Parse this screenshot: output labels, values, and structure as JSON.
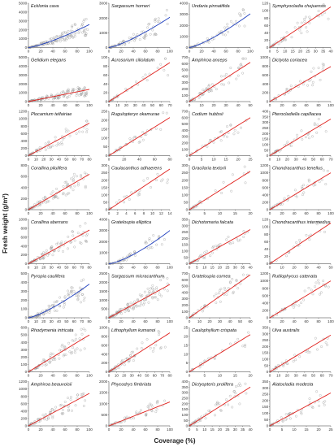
{
  "figure": {
    "xlabel": "Coverage (%)",
    "ylabel": "Fresh weight (g/m²)"
  },
  "colors": {
    "power": "#1f3fbf",
    "linear": "#e0201c",
    "points": "#9a9a9a",
    "axis": "#333333"
  },
  "chart_data": [
    {
      "type": "scatter",
      "title": "Ecklonia cava",
      "xlim": [
        0,
        100
      ],
      "xticks": [
        0,
        20,
        40,
        60,
        80,
        100
      ],
      "ylim": [
        0,
        5000
      ],
      "yticks": [
        0,
        1000,
        2000,
        3000,
        4000,
        5000
      ],
      "fit": {
        "kind": "power",
        "end": 2600,
        "exp": 1.3,
        "color": "#1f3fbf"
      },
      "noise": 0.45,
      "n": 130
    },
    {
      "type": "scatter",
      "title": "Sargassum horneri",
      "xlim": [
        0,
        100
      ],
      "xticks": [
        0,
        20,
        40,
        60,
        80,
        100
      ],
      "ylim": [
        0,
        3000
      ],
      "yticks": [
        0,
        1000,
        2000,
        3000
      ],
      "fit": {
        "kind": "power",
        "end": 2050,
        "exp": 1.3,
        "color": "#1f3fbf"
      },
      "noise": 0.4,
      "n": 70
    },
    {
      "type": "scatter",
      "title": "Undaria pinnatifida",
      "xlim": [
        0,
        100
      ],
      "xticks": [
        0,
        20,
        40,
        60,
        80,
        100
      ],
      "ylim": [
        0,
        4000
      ],
      "yticks": [
        0,
        1000,
        2000,
        3000,
        4000
      ],
      "fit": {
        "kind": "power",
        "end": 3050,
        "exp": 1.3,
        "color": "#1f3fbf"
      },
      "noise": 0.35,
      "n": 55
    },
    {
      "type": "scatter",
      "title": "Symphyocladia chejuensis",
      "xlim": [
        0,
        40
      ],
      "xticks": [
        0,
        5,
        10,
        15,
        20,
        25,
        30,
        35,
        40
      ],
      "ylim": [
        0,
        120
      ],
      "yticks": [
        0,
        20,
        40,
        60,
        80,
        100,
        120
      ],
      "fit": {
        "kind": "linear",
        "end": 110,
        "color": "#e0201c"
      },
      "noise": 0.35,
      "n": 45
    },
    {
      "type": "scatter",
      "title": "Gelidium elegans",
      "xlim": [
        0,
        100
      ],
      "xticks": [
        0,
        20,
        40,
        60,
        80,
        100
      ],
      "ylim": [
        0,
        5000
      ],
      "yticks": [
        0,
        1000,
        2000,
        3000,
        4000,
        5000
      ],
      "fit": {
        "kind": "linear",
        "end": 1380,
        "color": "#e0201c"
      },
      "noise": 0.5,
      "n": 120
    },
    {
      "type": "scatter",
      "title": "Acrosorium ciliolatum",
      "xlim": [
        0,
        70
      ],
      "xticks": [
        0,
        10,
        20,
        30,
        40,
        50,
        60,
        70
      ],
      "ylim": [
        0,
        100
      ],
      "yticks": [
        0,
        20,
        40,
        60,
        80,
        100
      ],
      "fit": {
        "kind": "linear",
        "end": 88,
        "color": "#e0201c"
      },
      "noise": 0.3,
      "n": 30
    },
    {
      "type": "scatter",
      "title": "Amphiroa anceps",
      "xlim": [
        0,
        50
      ],
      "xticks": [
        0,
        10,
        20,
        30,
        40,
        50
      ],
      "ylim": [
        0,
        700
      ],
      "yticks": [
        0,
        100,
        200,
        300,
        400,
        500,
        600,
        700
      ],
      "fit": {
        "kind": "linear",
        "end": 620,
        "color": "#e0201c"
      },
      "noise": 0.35,
      "n": 60
    },
    {
      "type": "scatter",
      "title": "Dictyota coriacea",
      "xlim": [
        0,
        100
      ],
      "xticks": [
        0,
        20,
        40,
        60,
        80,
        100
      ],
      "ylim": [
        0,
        1000
      ],
      "yticks": [
        0,
        200,
        400,
        600,
        800,
        1000
      ],
      "fit": {
        "kind": "linear",
        "end": 790,
        "color": "#e0201c"
      },
      "noise": 0.35,
      "n": 35
    },
    {
      "type": "scatter",
      "title": "Plocamium telfairiae",
      "xlim": [
        0,
        80
      ],
      "xticks": [
        0,
        10,
        20,
        30,
        40,
        50,
        60,
        70,
        80
      ],
      "ylim": [
        0,
        1200
      ],
      "yticks": [
        0,
        200,
        400,
        600,
        800,
        1000,
        1200
      ],
      "fit": {
        "kind": "linear",
        "end": 880,
        "color": "#e0201c"
      },
      "noise": 0.35,
      "n": 55
    },
    {
      "type": "scatter",
      "title": "Rugulopteryx okamurae",
      "xlim": [
        0,
        80
      ],
      "xticks": [
        0,
        20,
        40,
        60,
        80
      ],
      "ylim": [
        0,
        250
      ],
      "yticks": [
        0,
        50,
        100,
        150,
        200,
        250
      ],
      "fit": {
        "kind": "linear",
        "end": 215,
        "color": "#e0201c"
      },
      "noise": 0.3,
      "n": 35
    },
    {
      "type": "scatter",
      "title": "Codium hubbsii",
      "xlim": [
        0,
        25
      ],
      "xticks": [
        0,
        5,
        10,
        15,
        20,
        25
      ],
      "ylim": [
        0,
        700
      ],
      "yticks": [
        0,
        100,
        200,
        300,
        400,
        500,
        600,
        700
      ],
      "fit": {
        "kind": "linear",
        "end": 600,
        "color": "#e0201c"
      },
      "noise": 0.3,
      "n": 30
    },
    {
      "type": "scatter",
      "title": "Pterocladiella capillacea",
      "xlim": [
        0,
        70
      ],
      "xticks": [
        0,
        10,
        20,
        30,
        40,
        50,
        60,
        70
      ],
      "ylim": [
        0,
        400
      ],
      "yticks": [
        0,
        50,
        100,
        150,
        200,
        250,
        300,
        350,
        400
      ],
      "fit": {
        "kind": "linear",
        "end": 330,
        "color": "#e0201c"
      },
      "noise": 0.3,
      "n": 40
    },
    {
      "type": "scatter",
      "title": "Corallina pilulifera",
      "xlim": [
        0,
        100
      ],
      "xticks": [
        0,
        20,
        40,
        60,
        80,
        100
      ],
      "ylim": [
        0,
        800
      ],
      "yticks": [
        0,
        200,
        400,
        600,
        800
      ],
      "fit": {
        "kind": "linear",
        "end": 640,
        "color": "#e0201c"
      },
      "noise": 0.35,
      "n": 80
    },
    {
      "type": "scatter",
      "title": "Caulacanthus adhaerens",
      "xlim": [
        0,
        14
      ],
      "xticks": [
        0,
        2,
        4,
        6,
        8,
        10,
        12,
        14
      ],
      "ylim": [
        0,
        300
      ],
      "yticks": [
        0,
        50,
        100,
        150,
        200,
        250,
        300
      ],
      "fit": {
        "kind": "linear",
        "end": 275,
        "color": "#e0201c"
      },
      "noise": 0.3,
      "n": 25
    },
    {
      "type": "scatter",
      "title": "Gracilaria textorii",
      "xlim": [
        0,
        20
      ],
      "xticks": [
        0,
        5,
        10,
        15,
        20
      ],
      "ylim": [
        0,
        300
      ],
      "yticks": [
        0,
        50,
        100,
        150,
        200,
        250,
        300
      ],
      "fit": {
        "kind": "linear",
        "end": 260,
        "color": "#e0201c"
      },
      "noise": 0.3,
      "n": 25
    },
    {
      "type": "scatter",
      "title": "Chondracanthus tenellus",
      "xlim": [
        0,
        100
      ],
      "xticks": [
        0,
        20,
        40,
        60,
        80,
        100
      ],
      "ylim": [
        0,
        1200
      ],
      "yticks": [
        0,
        200,
        400,
        600,
        800,
        1000,
        1200
      ],
      "fit": {
        "kind": "linear",
        "end": 1000,
        "color": "#e0201c"
      },
      "noise": 0.3,
      "n": 40
    },
    {
      "type": "scatter",
      "title": "Corallina aberrans",
      "xlim": [
        0,
        80
      ],
      "xticks": [
        0,
        10,
        20,
        30,
        40,
        50,
        60,
        70,
        80
      ],
      "ylim": [
        0,
        1000
      ],
      "yticks": [
        0,
        200,
        400,
        600,
        800,
        1000
      ],
      "fit": {
        "kind": "linear",
        "end": 760,
        "color": "#e0201c"
      },
      "noise": 0.35,
      "n": 80
    },
    {
      "type": "scatter",
      "title": "Grateloupia elliptica",
      "xlim": [
        0,
        100
      ],
      "xticks": [
        0,
        20,
        40,
        60,
        80,
        100
      ],
      "ylim": [
        0,
        4000
      ],
      "yticks": [
        0,
        1000,
        2000,
        3000,
        4000
      ],
      "fit": {
        "kind": "power",
        "end": 3000,
        "exp": 1.4,
        "color": "#1f3fbf"
      },
      "noise": 0.35,
      "n": 50
    },
    {
      "type": "scatter",
      "title": "Dichotomaria falcata",
      "xlim": [
        0,
        40
      ],
      "xticks": [
        0,
        5,
        10,
        15,
        20,
        25,
        30,
        35,
        40
      ],
      "ylim": [
        0,
        350
      ],
      "yticks": [
        0,
        50,
        100,
        150,
        200,
        250,
        300,
        350
      ],
      "fit": {
        "kind": "linear",
        "end": 270,
        "color": "#e0201c"
      },
      "noise": 0.3,
      "n": 45
    },
    {
      "type": "scatter",
      "title": "Chondracanthus intermedius",
      "xlim": [
        0,
        50
      ],
      "xticks": [
        0,
        10,
        20,
        30,
        40,
        50
      ],
      "ylim": [
        0,
        120
      ],
      "yticks": [
        0,
        20,
        40,
        60,
        80,
        100,
        120
      ],
      "fit": {
        "kind": "linear",
        "end": 110,
        "color": "#e0201c"
      },
      "noise": 0.3,
      "n": 25
    },
    {
      "type": "scatter",
      "title": "Pyropia caulifera",
      "xlim": [
        0,
        80
      ],
      "xticks": [
        0,
        10,
        20,
        30,
        40,
        50,
        60,
        70,
        80
      ],
      "ylim": [
        0,
        500
      ],
      "yticks": [
        0,
        100,
        200,
        300,
        400,
        500
      ],
      "fit": {
        "kind": "power",
        "end": 380,
        "exp": 1.3,
        "color": "#1f3fbf"
      },
      "noise": 0.45,
      "n": 100
    },
    {
      "type": "scatter",
      "title": "Sargassum micracanthum",
      "xlim": [
        0,
        100
      ],
      "xticks": [
        0,
        20,
        40,
        60,
        80,
        100
      ],
      "ylim": [
        0,
        2500
      ],
      "yticks": [
        0,
        500,
        1000,
        1500,
        2000,
        2500
      ],
      "fit": {
        "kind": "linear",
        "end": 1880,
        "color": "#e0201c"
      },
      "noise": 0.35,
      "n": 110
    },
    {
      "type": "scatter",
      "title": "Grateloupia cornea",
      "xlim": [
        0,
        60
      ],
      "xticks": [
        0,
        10,
        20,
        30,
        40,
        50,
        60
      ],
      "ylim": [
        0,
        700
      ],
      "yticks": [
        0,
        100,
        200,
        300,
        400,
        500,
        600,
        700
      ],
      "fit": {
        "kind": "linear",
        "end": 680,
        "color": "#e0201c"
      },
      "noise": 0.3,
      "n": 45
    },
    {
      "type": "scatter",
      "title": "Rutilophycus catenata",
      "xlim": [
        0,
        100
      ],
      "xticks": [
        0,
        20,
        40,
        60,
        80,
        100
      ],
      "ylim": [
        0,
        1200
      ],
      "yticks": [
        0,
        200,
        400,
        600,
        800,
        1000,
        1200
      ],
      "fit": {
        "kind": "linear",
        "end": 1000,
        "color": "#e0201c"
      },
      "noise": 0.3,
      "n": 35
    },
    {
      "type": "scatter",
      "title": "Rhodymenia intricata",
      "xlim": [
        0,
        100
      ],
      "xticks": [
        0,
        20,
        40,
        60,
        80,
        100
      ],
      "ylim": [
        0,
        600
      ],
      "yticks": [
        0,
        100,
        200,
        300,
        400,
        500,
        600
      ],
      "fit": {
        "kind": "linear",
        "end": 500,
        "color": "#e0201c"
      },
      "noise": 0.35,
      "n": 70
    },
    {
      "type": "scatter",
      "title": "Lithophyllum kumanoi",
      "xlim": [
        0,
        80
      ],
      "xticks": [
        0,
        10,
        20,
        30,
        40,
        50,
        60,
        70,
        80
      ],
      "ylim": [
        0,
        1000
      ],
      "yticks": [
        0,
        200,
        400,
        600,
        800,
        1000
      ],
      "fit": {
        "kind": "linear",
        "end": 880,
        "color": "#e0201c"
      },
      "noise": 0.35,
      "n": 60
    },
    {
      "type": "scatter",
      "title": "Caulophyllum crispata",
      "xlim": [
        0,
        20
      ],
      "xticks": [
        0,
        5,
        10,
        15,
        20
      ],
      "ylim": [
        0,
        25
      ],
      "yticks": [
        0,
        5,
        10,
        15,
        20,
        25
      ],
      "fit": {
        "kind": "linear",
        "end": 21,
        "color": "#e0201c"
      },
      "noise": 0.3,
      "n": 25
    },
    {
      "type": "scatter",
      "title": "Ulva australis",
      "xlim": [
        0,
        70
      ],
      "xticks": [
        0,
        10,
        20,
        30,
        40,
        50,
        60,
        70
      ],
      "ylim": [
        0,
        350
      ],
      "yticks": [
        0,
        50,
        100,
        150,
        200,
        250,
        300,
        350
      ],
      "fit": {
        "kind": "linear",
        "end": 290,
        "color": "#e0201c"
      },
      "noise": 0.3,
      "n": 35
    },
    {
      "type": "scatter",
      "title": "Amphiroa beauvoisii",
      "xlim": [
        0,
        100
      ],
      "xticks": [
        0,
        20,
        40,
        60,
        80,
        100
      ],
      "ylim": [
        0,
        1200
      ],
      "yticks": [
        0,
        200,
        400,
        600,
        800,
        1000,
        1200
      ],
      "fit": {
        "kind": "linear",
        "end": 880,
        "color": "#e0201c"
      },
      "noise": 0.35,
      "n": 70
    },
    {
      "type": "scatter",
      "title": "Phycodrys fimbriata",
      "xlim": [
        0,
        100
      ],
      "xticks": [
        0,
        20,
        40,
        60,
        80,
        100
      ],
      "ylim": [
        0,
        2000
      ],
      "yticks": [
        0,
        500,
        1000,
        1500,
        2000
      ],
      "fit": {
        "kind": "linear",
        "end": 1080,
        "color": "#e0201c"
      },
      "noise": 0.35,
      "n": 45
    },
    {
      "type": "scatter",
      "title": "Dictyopteris prolifera",
      "xlim": [
        0,
        40
      ],
      "xticks": [
        0,
        5,
        10,
        15,
        20,
        25,
        30,
        35,
        40
      ],
      "ylim": [
        0,
        400
      ],
      "yticks": [
        0,
        50,
        100,
        150,
        200,
        250,
        300,
        350,
        400
      ],
      "fit": {
        "kind": "linear",
        "end": 350,
        "color": "#e0201c"
      },
      "noise": 0.35,
      "n": 55
    },
    {
      "type": "scatter",
      "title": "Alatocladia modesta",
      "xlim": [
        0,
        25
      ],
      "xticks": [
        0,
        5,
        10,
        15,
        20,
        25
      ],
      "ylim": [
        0,
        350
      ],
      "yticks": [
        0,
        50,
        100,
        150,
        200,
        250,
        300,
        350
      ],
      "fit": {
        "kind": "linear",
        "end": 260,
        "color": "#e0201c"
      },
      "noise": 0.35,
      "n": 45
    }
  ]
}
